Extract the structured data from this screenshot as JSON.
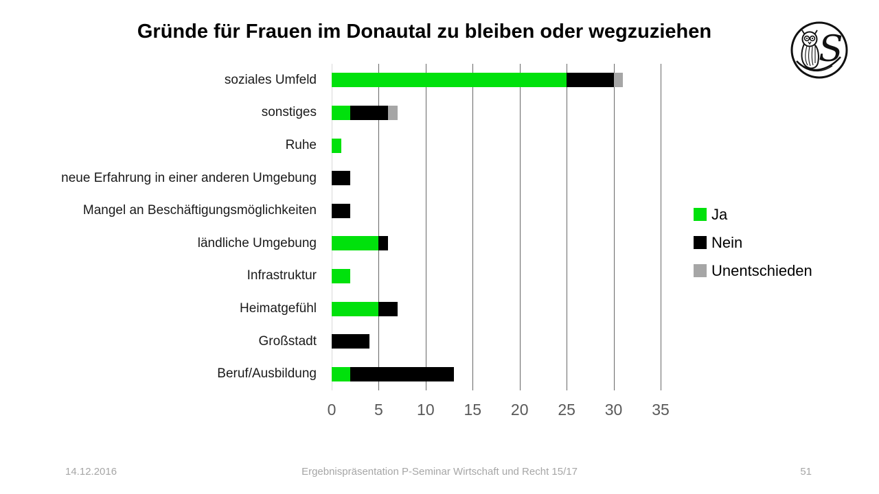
{
  "slide": {
    "title": "Gründe für Frauen im Donautal zu bleiben oder wegzuziehen",
    "footer": {
      "date": "14.12.2016",
      "center": "Ergebnispräsentation P-Seminar Wirtschaft und Recht 15/17",
      "page_number": "51"
    }
  },
  "colors": {
    "ja_green": "#00e10c",
    "nein_black": "#000000",
    "unentschieden_gray": "#a6a6a6",
    "gridline": "#666666",
    "zero_axis_line": "#d9d9d9",
    "tick_label": "#595959",
    "footer_text": "#a6a6a6"
  },
  "chart_data": {
    "type": "bar",
    "orientation": "horizontal",
    "stacked": true,
    "title": "Gründe für Frauen im Donautal zu bleiben oder wegzuziehen",
    "categories": [
      "soziales Umfeld",
      "sonstiges",
      "Ruhe",
      "neue Erfahrung in einer anderen Umgebung",
      "Mangel an Beschäftigungsmöglichkeiten",
      "ländliche Umgebung",
      "Infrastruktur",
      "Heimatgefühl",
      "Großstadt",
      "Beruf/Ausbildung"
    ],
    "series": [
      {
        "name": "Ja",
        "color": "#00e10c",
        "values": [
          25,
          2,
          1,
          0,
          0,
          5,
          2,
          5,
          0,
          2
        ]
      },
      {
        "name": "Nein",
        "color": "#000000",
        "values": [
          5,
          4,
          0,
          2,
          2,
          1,
          0,
          2,
          4,
          11
        ]
      },
      {
        "name": "Unentschieden",
        "color": "#a6a6a6",
        "values": [
          1,
          1,
          0,
          0,
          0,
          0,
          0,
          0,
          0,
          0
        ]
      }
    ],
    "xlim": [
      0,
      35
    ],
    "xticks": [
      0,
      5,
      10,
      15,
      20,
      25,
      30,
      35
    ],
    "xlabel": "",
    "ylabel": "",
    "grid": true,
    "legend_position": "right"
  }
}
